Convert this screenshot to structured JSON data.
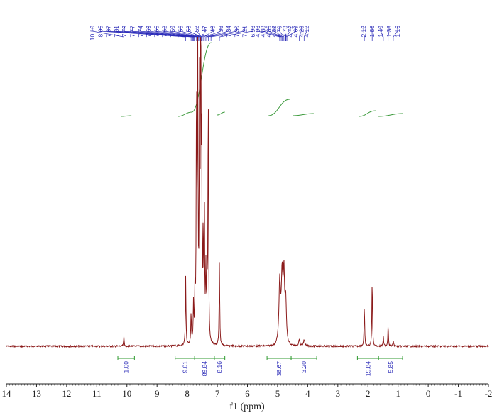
{
  "chart_data": {
    "type": "line",
    "title": "",
    "xlabel": "f1 (ppm)",
    "ylabel": "",
    "xlim": [
      14,
      -2
    ],
    "x_ticks": [
      "14",
      "13",
      "12",
      "11",
      "10",
      "9",
      "8",
      "7",
      "6",
      "5",
      "4",
      "3",
      "2",
      "1",
      "0",
      "-1",
      "-2"
    ],
    "colors": {
      "spectrum": "#8b1a1a",
      "integral_curve": "#3c9a3c",
      "integral_bar": "#2f9a2f",
      "peak_labels": "#2b2bb8",
      "axis": "#222222"
    },
    "peak_labels": [
      "10.10",
      "8.05",
      "7.87",
      "7.81",
      "7.79",
      "7.77",
      "7.74",
      "7.69",
      "7.65",
      "7.62",
      "7.59",
      "7.55",
      "7.53",
      "7.52",
      "7.47",
      "7.43",
      "7.38",
      "7.34",
      "7.30",
      "7.21",
      "6.93",
      "4.93",
      "4.88",
      "4.85",
      "4.82",
      "4.79",
      "4.73",
      "4.72",
      "4.69",
      "4.28",
      "4.12",
      "2.12",
      "1.86",
      "1.49",
      "1.33",
      "1.16"
    ],
    "peaks": [
      {
        "ppm": 10.1,
        "height": 0.03
      },
      {
        "ppm": 8.05,
        "height": 0.22
      },
      {
        "ppm": 7.87,
        "height": 0.1
      },
      {
        "ppm": 7.79,
        "height": 0.12
      },
      {
        "ppm": 7.74,
        "height": 0.16
      },
      {
        "ppm": 7.69,
        "height": 0.82
      },
      {
        "ppm": 7.65,
        "height": 0.9
      },
      {
        "ppm": 7.59,
        "height": 0.78
      },
      {
        "ppm": 7.55,
        "height": 1.0
      },
      {
        "ppm": 7.52,
        "height": 0.55
      },
      {
        "ppm": 7.47,
        "height": 0.3
      },
      {
        "ppm": 7.43,
        "height": 0.45
      },
      {
        "ppm": 7.38,
        "height": 0.22
      },
      {
        "ppm": 7.34,
        "height": 0.17
      },
      {
        "ppm": 7.3,
        "height": 0.82
      },
      {
        "ppm": 6.93,
        "height": 0.27
      },
      {
        "ppm": 4.93,
        "height": 0.17
      },
      {
        "ppm": 4.85,
        "height": 0.16
      },
      {
        "ppm": 4.79,
        "height": 0.18
      },
      {
        "ppm": 4.73,
        "height": 0.12
      },
      {
        "ppm": 4.28,
        "height": 0.02
      },
      {
        "ppm": 4.12,
        "height": 0.02
      },
      {
        "ppm": 2.12,
        "height": 0.13
      },
      {
        "ppm": 1.86,
        "height": 0.22
      },
      {
        "ppm": 1.49,
        "height": 0.03
      },
      {
        "ppm": 1.33,
        "height": 0.07
      },
      {
        "ppm": 1.16,
        "height": 0.02
      }
    ],
    "integrals": [
      {
        "from": 10.3,
        "to": 9.75,
        "value": "1.00"
      },
      {
        "from": 8.4,
        "to": 7.75,
        "value": "9.01"
      },
      {
        "from": 7.75,
        "to": 7.1,
        "value": "89.84"
      },
      {
        "from": 7.1,
        "to": 6.75,
        "value": "8.16"
      },
      {
        "from": 5.35,
        "to": 4.55,
        "value": "38.67"
      },
      {
        "from": 4.55,
        "to": 3.7,
        "value": "3.20"
      },
      {
        "from": 2.35,
        "to": 1.65,
        "value": "15.84"
      },
      {
        "from": 1.65,
        "to": 0.85,
        "value": "5.85"
      }
    ]
  }
}
